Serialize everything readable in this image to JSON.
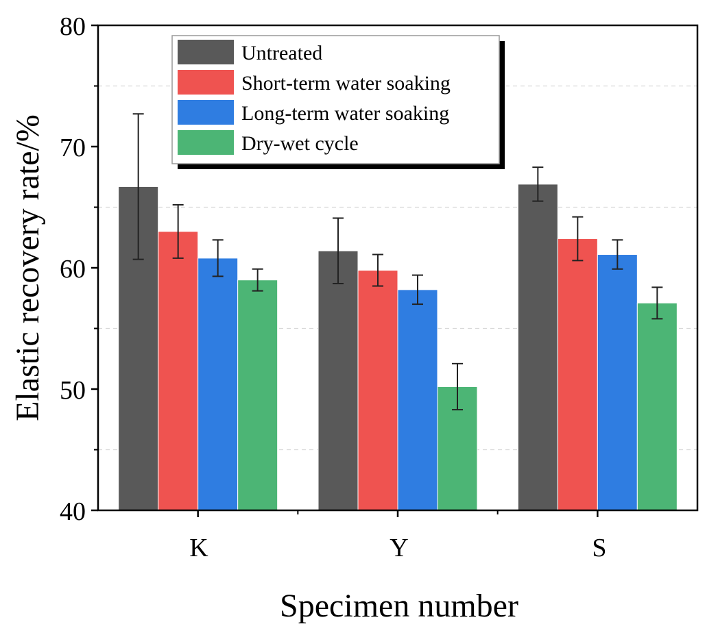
{
  "chart_data": {
    "type": "bar",
    "title": "",
    "xlabel": "Specimen number",
    "ylabel": "Elastic recovery rate/%",
    "ylim": [
      40,
      80
    ],
    "yticks": [
      40,
      50,
      60,
      70,
      80
    ],
    "minor_gridlines": [
      45,
      55,
      65,
      75
    ],
    "grid": "dashed minor",
    "legend_position": "top-left",
    "categories": [
      "K",
      "Y",
      "S"
    ],
    "series": [
      {
        "name": "Untreated",
        "color": "#595959",
        "values": [
          66.7,
          61.4,
          66.9
        ],
        "errors": [
          6.0,
          2.7,
          1.4
        ]
      },
      {
        "name": "Short-term water soaking",
        "color": "#ef5350",
        "values": [
          63.0,
          59.8,
          62.4
        ],
        "errors": [
          2.2,
          1.3,
          1.8
        ]
      },
      {
        "name": "Long-term water soaking",
        "color": "#2f7de1",
        "values": [
          60.8,
          58.2,
          61.1
        ],
        "errors": [
          1.5,
          1.2,
          1.2
        ]
      },
      {
        "name": "Dry-wet cycle",
        "color": "#4cb575",
        "values": [
          59.0,
          50.2,
          57.1
        ],
        "errors": [
          0.9,
          1.9,
          1.3
        ]
      }
    ]
  }
}
